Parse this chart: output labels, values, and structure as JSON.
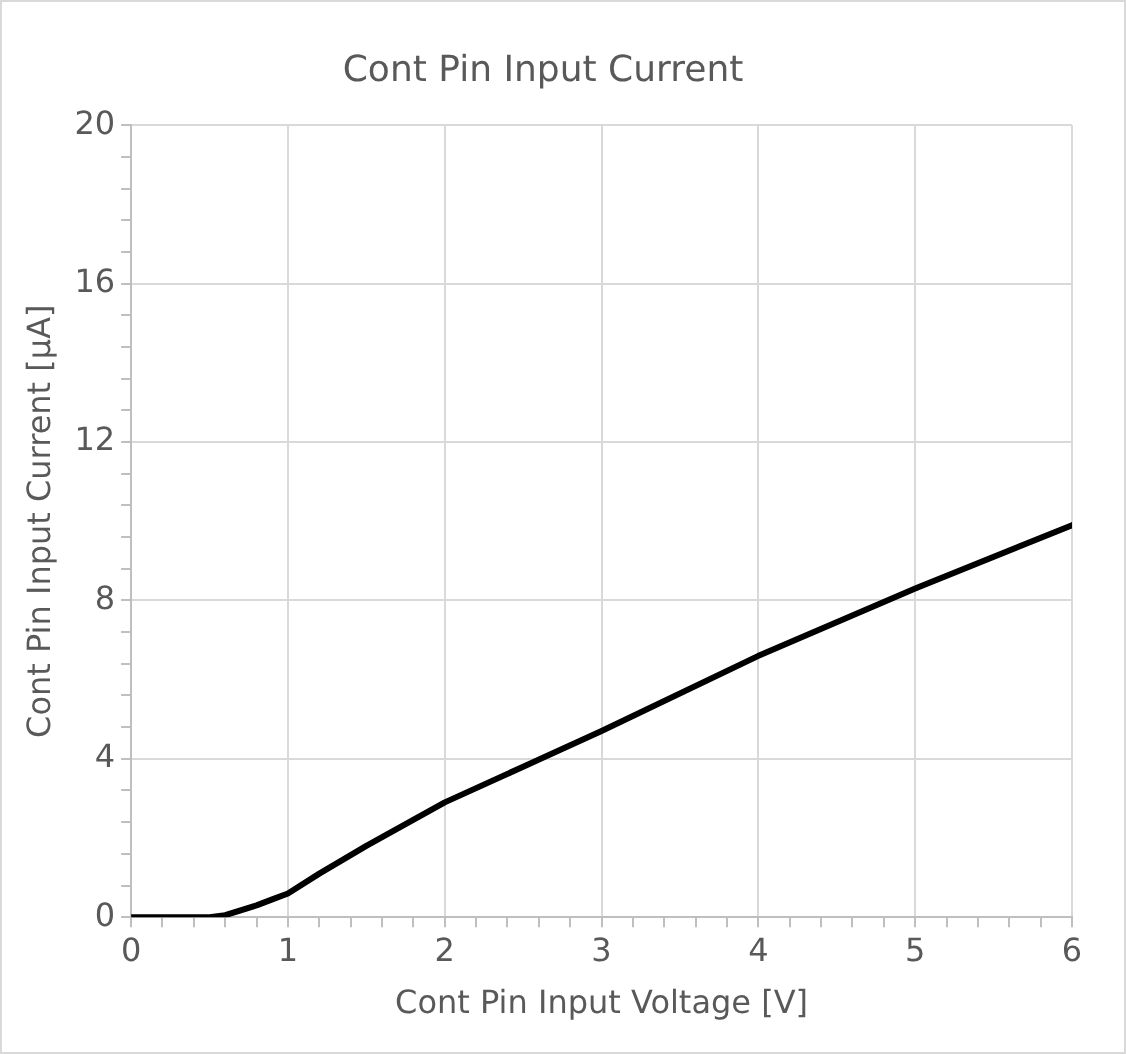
{
  "chart_data": {
    "type": "line",
    "title": "Cont Pin Input Current",
    "xlabel": "Cont Pin Input Voltage [V]",
    "ylabel": "Cont Pin Input Current [μA]",
    "xlim": [
      0,
      6
    ],
    "ylim": [
      0,
      20
    ],
    "xticks": [
      0,
      {
        "value": 0.2,
        "label": null
      },
      {
        "value": 0.4,
        "label": null
      },
      {
        "value": 0.6,
        "label": null
      },
      {
        "value": 0.8,
        "label": null
      },
      1,
      {
        "value": 1.2,
        "label": null
      },
      {
        "value": 1.4,
        "label": null
      },
      {
        "value": 1.6,
        "label": null
      },
      {
        "value": 1.8,
        "label": null
      },
      2,
      {
        "value": 2.2,
        "label": null
      },
      {
        "value": 2.4,
        "label": null
      },
      {
        "value": 2.6,
        "label": null
      },
      {
        "value": 2.8,
        "label": null
      },
      3,
      {
        "value": 3.2,
        "label": null
      },
      {
        "value": 3.4,
        "label": null
      },
      {
        "value": 3.6,
        "label": null
      },
      {
        "value": 3.8,
        "label": null
      },
      4,
      {
        "value": 4.2,
        "label": null
      },
      {
        "value": 4.4,
        "label": null
      },
      {
        "value": 4.6,
        "label": null
      },
      {
        "value": 4.8,
        "label": null
      },
      5,
      {
        "value": 5.2,
        "label": null
      },
      {
        "value": 5.4,
        "label": null
      },
      {
        "value": 5.6,
        "label": null
      },
      {
        "value": 5.8,
        "label": null
      },
      6
    ],
    "yticks": [
      0,
      {
        "value": 0.8,
        "label": null
      },
      {
        "value": 1.6,
        "label": null
      },
      {
        "value": 2.4,
        "label": null
      },
      {
        "value": 3.2,
        "label": null
      },
      4,
      {
        "value": 4.8,
        "label": null
      },
      {
        "value": 5.6,
        "label": null
      },
      {
        "value": 6.4,
        "label": null
      },
      {
        "value": 7.2,
        "label": null
      },
      8,
      {
        "value": 8.8,
        "label": null
      },
      {
        "value": 9.6,
        "label": null
      },
      {
        "value": 10.4,
        "label": null
      },
      {
        "value": 11.2,
        "label": null
      },
      12,
      {
        "value": 12.8,
        "label": null
      },
      {
        "value": 13.6,
        "label": null
      },
      {
        "value": 14.4,
        "label": null
      },
      {
        "value": 15.2,
        "label": null
      },
      16,
      {
        "value": 16.8,
        "label": null
      },
      {
        "value": 17.6,
        "label": null
      },
      {
        "value": 18.4,
        "label": null
      },
      {
        "value": 19.2,
        "label": null
      },
      20
    ],
    "grid": true,
    "marker": "none",
    "line_style": "solid",
    "x": [
      0,
      0.5,
      0.6,
      0.8,
      0.9,
      1,
      1.2,
      1.5,
      2,
      2.5,
      3,
      4,
      5,
      6
    ],
    "series": [
      {
        "color": "#000000",
        "values": [
          0,
          0,
          0.05,
          0.3,
          0.45,
          0.6,
          1.1,
          1.8,
          2.9,
          3.8,
          4.7,
          6.6,
          8.3,
          9.9
        ]
      }
    ]
  }
}
